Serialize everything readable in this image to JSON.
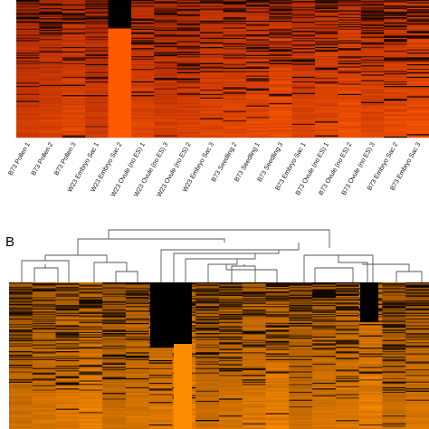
{
  "chart_data": [
    {
      "type": "heatmap",
      "panel_label": "",
      "columns": [
        "B73 Pollen 1",
        "B73 Pollen 2",
        "B73 Pollen 3",
        "W23 Embryo Sac 1",
        "W23 Embryo Sac 2",
        "W23 Ovule (no ES) 1",
        "W23 Ovule (no ES) 3",
        "W23 Ovule (no ES) 2",
        "W23 Embryo Sac 3",
        "B73 Seedling 2",
        "B73 Seedling 1",
        "B73 Seedling 3",
        "B73 Embryo Sac 1",
        "B73 Ovule (no ES) 1",
        "B73 Ovule (no ES) 2",
        "B73 Ovule (no ES) 3",
        "B73 Embryo Sac 2",
        "B73 Embryo Sac 3"
      ],
      "color_scale": {
        "low": "#000000",
        "mid": "#b02a05",
        "high": "#ff5a00"
      }
    },
    {
      "type": "heatmap",
      "panel_label": "B",
      "color_scale": {
        "low": "#000000",
        "mid": "#a85a00",
        "high": "#ff8c00"
      }
    }
  ]
}
